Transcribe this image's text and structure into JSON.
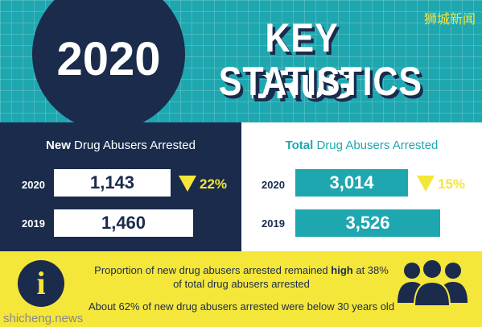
{
  "header": {
    "year": "2020",
    "title_line1": "KEY DRUG",
    "title_line2": "STATISTICS",
    "watermark": "狮城新闻"
  },
  "panels": [
    {
      "title_emphasis": "New",
      "title_rest": "Drug Abusers Arrested",
      "rows": [
        {
          "year": "2020",
          "value": "1,143",
          "change": "22%"
        },
        {
          "year": "2019",
          "value": "1,460"
        }
      ]
    },
    {
      "title_emphasis": "Total",
      "title_rest": "Drug Abusers Arrested",
      "rows": [
        {
          "year": "2020",
          "value": "3,014",
          "change": "15%"
        },
        {
          "year": "2019",
          "value": "3,526"
        }
      ]
    }
  ],
  "footer": {
    "line1_before": "Proportion of new drug abusers arrested remained",
    "line1_bold": "high",
    "line1_after": "at 38%",
    "line2": "of total drug abusers arrested",
    "line3": "About 62% of new drug abusers arrested were below 30 years old",
    "watermark": "shicheng.news"
  }
}
